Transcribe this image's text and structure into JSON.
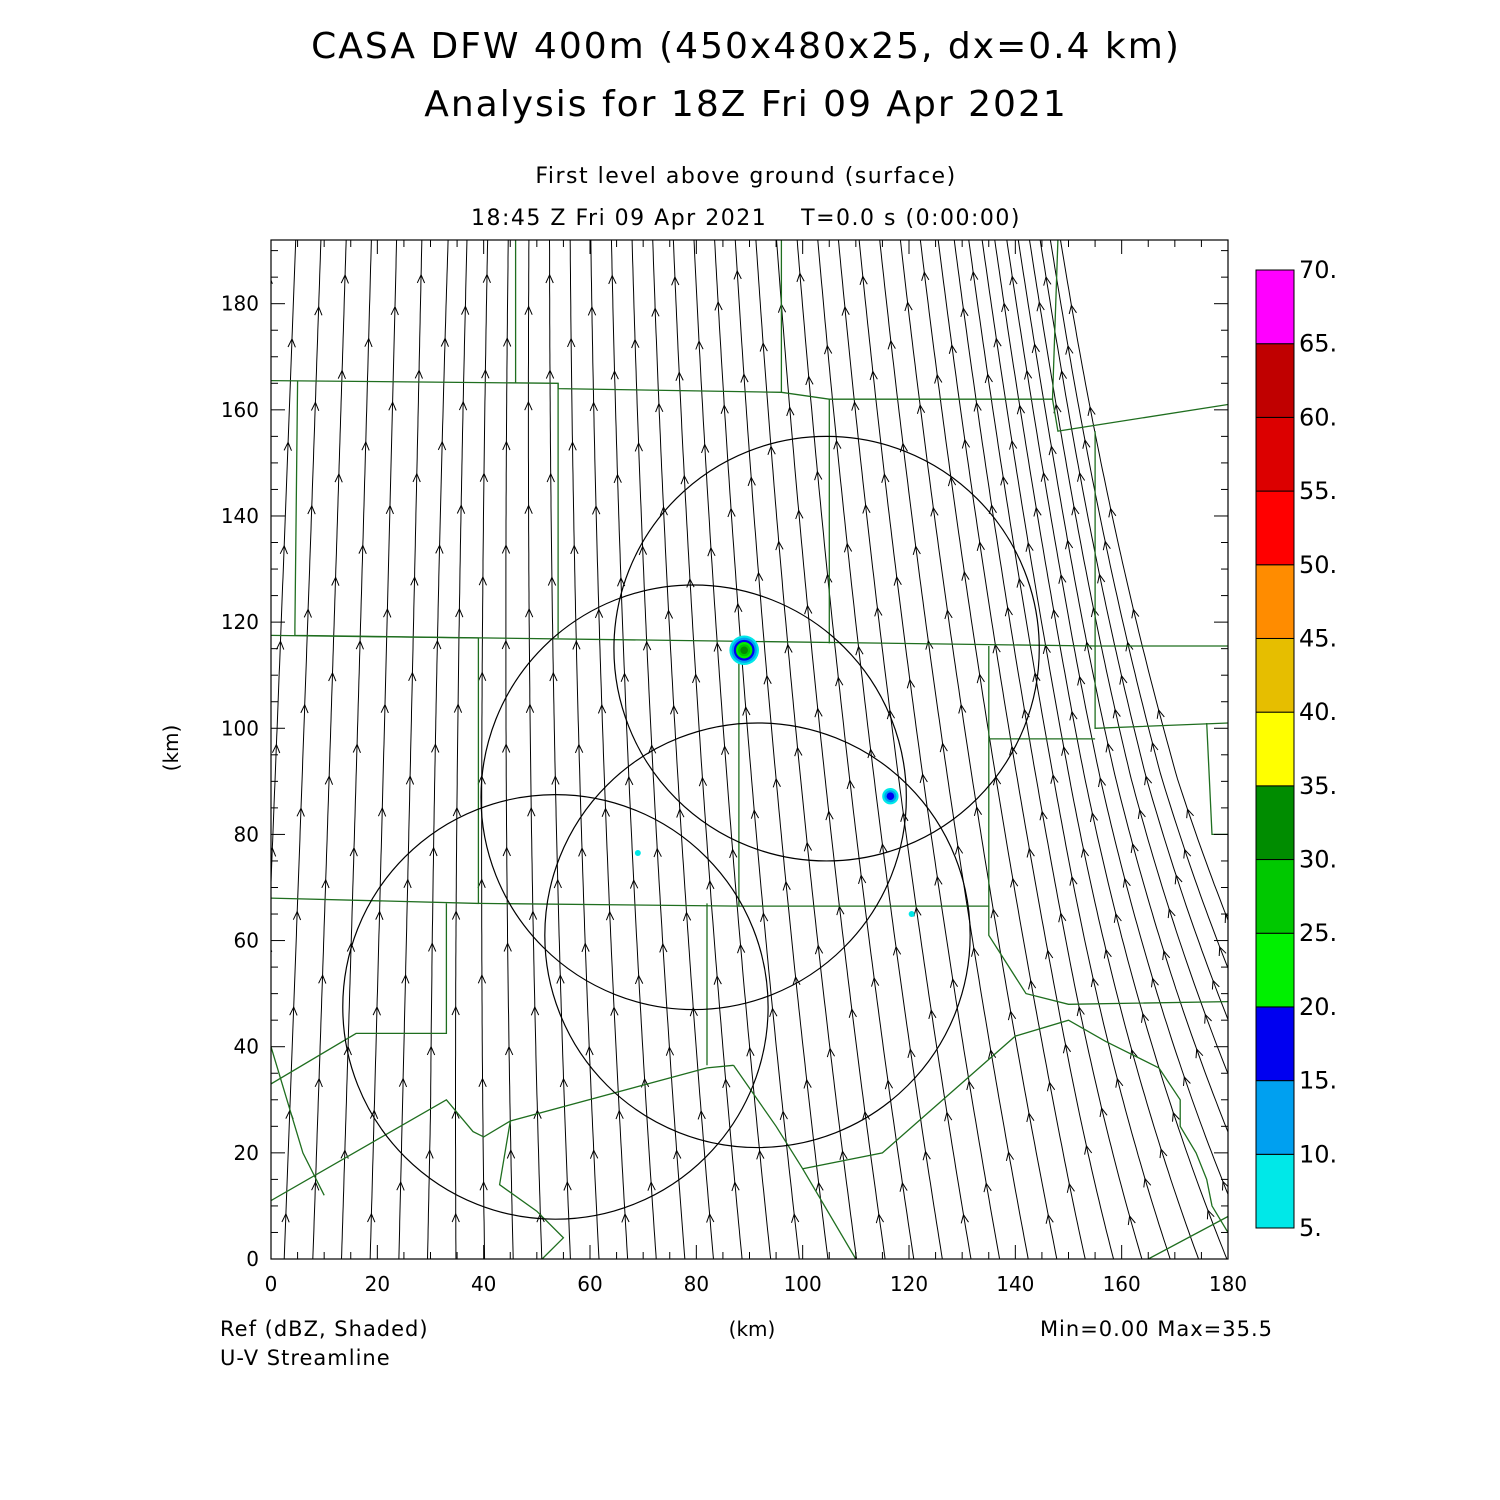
{
  "header": {
    "title_line1": "CASA DFW 400m (450x480x25, dx=0.4 km)",
    "title_line2": "Analysis for 18Z Fri 09 Apr 2021",
    "subtitle_line1": "First level above ground (surface)",
    "subtitle_line2": "18:45 Z Fri 09 Apr 2021    T=0.0 s (0:00:00)"
  },
  "footer": {
    "field_label": "Ref (dBZ, Shaded)",
    "stream_label": "U-V Streamline",
    "minmax": "Min=0.00 Max=35.5"
  },
  "chart_data": {
    "type": "heatmap",
    "xlabel": "(km)",
    "ylabel": "(km)",
    "xlim": [
      0,
      180
    ],
    "ylim": [
      0,
      192
    ],
    "xticks": [
      0,
      20,
      40,
      60,
      80,
      100,
      120,
      140,
      160,
      180
    ],
    "yticks": [
      0,
      20,
      40,
      60,
      80,
      100,
      120,
      140,
      160,
      180
    ],
    "colorbar": {
      "levels": [
        "5.",
        "10.",
        "15.",
        "20.",
        "25.",
        "30.",
        "35.",
        "40.",
        "45.",
        "50.",
        "55.",
        "60.",
        "65.",
        "70."
      ],
      "colors": [
        "#00e8e8",
        "#00a0f0",
        "#0000f0",
        "#00f000",
        "#00c800",
        "#008c00",
        "#ffff00",
        "#e6be00",
        "#ff8c00",
        "#ff0000",
        "#dc0000",
        "#c00000",
        "#ff00ff"
      ]
    },
    "radar_rings": [
      {
        "cx": 104.5,
        "cy": 115.0,
        "r": 40.0
      },
      {
        "cx": 79.5,
        "cy": 87.0,
        "r": 40.0
      },
      {
        "cx": 91.5,
        "cy": 61.0,
        "r": 40.0
      },
      {
        "cx": 53.5,
        "cy": 47.5,
        "r": 40.0
      }
    ],
    "echoes": [
      {
        "x": 89.0,
        "y": 114.7,
        "dbz": 30
      },
      {
        "x": 116.5,
        "y": 87.2,
        "dbz": 15
      },
      {
        "x": 120.5,
        "y": 65.0,
        "dbz": 5
      },
      {
        "x": 69.0,
        "y": 76.5,
        "dbz": 5
      }
    ],
    "county_lines": [
      [
        [
          0,
          165.5
        ],
        [
          54,
          165
        ],
        [
          54,
          164
        ],
        [
          96,
          163.3
        ],
        [
          105,
          162
        ],
        [
          147,
          162
        ],
        [
          148,
          156
        ],
        [
          180,
          161
        ]
      ],
      [
        [
          5,
          165.5
        ],
        [
          4.5,
          119
        ],
        [
          4.5,
          117.5
        ],
        [
          155,
          115.5
        ],
        [
          180,
          115.5
        ]
      ],
      [
        [
          0,
          117.5
        ],
        [
          39,
          117
        ]
      ],
      [
        [
          46,
          192
        ],
        [
          46,
          165
        ]
      ],
      [
        [
          54,
          165
        ],
        [
          54,
          117
        ]
      ],
      [
        [
          96,
          192
        ],
        [
          96,
          163.3
        ]
      ],
      [
        [
          105,
          162
        ],
        [
          105,
          116
        ]
      ],
      [
        [
          147,
          162
        ],
        [
          148,
          192
        ]
      ],
      [
        [
          155,
          156
        ],
        [
          155,
          116
        ],
        [
          155,
          100
        ],
        [
          180,
          101
        ]
      ],
      [
        [
          39,
          117
        ],
        [
          39,
          67
        ],
        [
          0,
          68
        ]
      ],
      [
        [
          39,
          67
        ],
        [
          88,
          66.5
        ],
        [
          88,
          116
        ]
      ],
      [
        [
          88,
          66.5
        ],
        [
          135,
          66.5
        ],
        [
          135,
          115.5
        ]
      ],
      [
        [
          135,
          98
        ],
        [
          155,
          98
        ]
      ],
      [
        [
          135,
          66.5
        ],
        [
          135,
          61
        ],
        [
          142,
          50
        ],
        [
          150,
          48
        ],
        [
          180,
          48.5
        ]
      ],
      [
        [
          176,
          101
        ],
        [
          177,
          80
        ],
        [
          180,
          80
        ]
      ],
      [
        [
          33,
          67
        ],
        [
          33,
          42.5
        ],
        [
          16,
          42.5
        ],
        [
          0,
          33
        ]
      ],
      [
        [
          0,
          11
        ],
        [
          33,
          30
        ],
        [
          38,
          24
        ],
        [
          40,
          23
        ],
        [
          45,
          26
        ],
        [
          82,
          36
        ],
        [
          87,
          36.5
        ]
      ],
      [
        [
          82,
          36.5
        ],
        [
          82,
          67
        ]
      ],
      [
        [
          87,
          36.5
        ],
        [
          95,
          25
        ],
        [
          100,
          17
        ],
        [
          115,
          20
        ],
        [
          140,
          42
        ],
        [
          150,
          45
        ],
        [
          157,
          41
        ],
        [
          167,
          36
        ]
      ],
      [
        [
          45,
          26
        ],
        [
          43,
          14
        ],
        [
          50,
          9
        ],
        [
          55,
          4
        ],
        [
          51,
          0
        ]
      ],
      [
        [
          100,
          17
        ],
        [
          110,
          0
        ]
      ],
      [
        [
          0,
          40
        ],
        [
          6,
          20
        ],
        [
          10,
          12
        ]
      ],
      [
        [
          167,
          36
        ],
        [
          171,
          30
        ],
        [
          171,
          25
        ],
        [
          174,
          20
        ],
        [
          176,
          15
        ],
        [
          177,
          10
        ],
        [
          180,
          5
        ]
      ],
      [
        [
          165,
          0
        ],
        [
          180,
          8
        ]
      ]
    ],
    "colors": {
      "county": "#1f6e1f",
      "ring": "#000000",
      "streamline": "#000000"
    }
  }
}
